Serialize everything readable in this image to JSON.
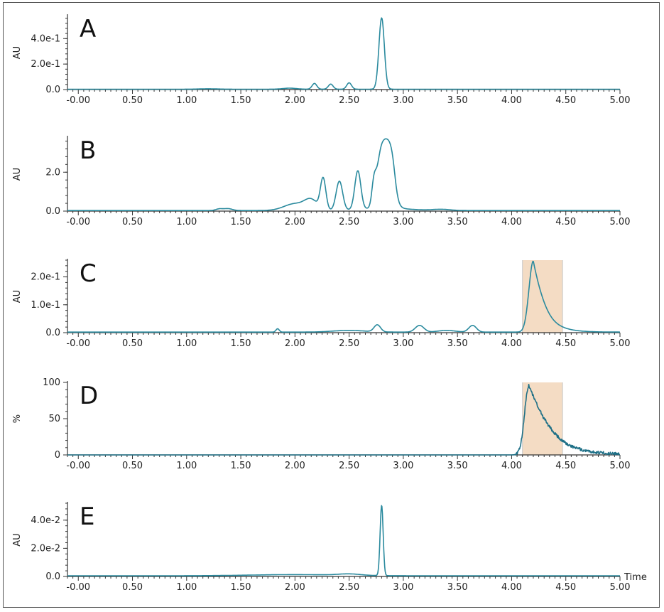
{
  "chart_data": [
    {
      "type": "line",
      "panel_label": "A",
      "ylabel": "AU",
      "xlabel": "",
      "xlim": [
        -0.1,
        5.0
      ],
      "ylim": [
        0,
        0.58
      ],
      "x_ticks": [
        "-0.00",
        "0.50",
        "1.00",
        "1.50",
        "2.00",
        "2.50",
        "3.00",
        "3.50",
        "4.00",
        "4.50",
        "5.00"
      ],
      "y_ticks": [
        {
          "value": 0,
          "label": "0.0"
        },
        {
          "value": 0.2,
          "label": "2.0e-1"
        },
        {
          "value": 0.4,
          "label": "4.0e-1"
        }
      ],
      "color": "#2a8a9e",
      "baseline": 0.003,
      "peaks": [
        {
          "x": 1.2,
          "height": 0.003,
          "width": 0.08
        },
        {
          "x": 1.95,
          "height": 0.008,
          "width": 0.06
        },
        {
          "x": 2.18,
          "height": 0.045,
          "width": 0.022
        },
        {
          "x": 2.33,
          "height": 0.04,
          "width": 0.022
        },
        {
          "x": 2.5,
          "height": 0.05,
          "width": 0.022
        },
        {
          "x": 2.8,
          "height": 0.56,
          "width": 0.025
        }
      ],
      "highlight": null
    },
    {
      "type": "line",
      "panel_label": "B",
      "ylabel": "AU",
      "xlabel": "",
      "xlim": [
        -0.1,
        5.0
      ],
      "ylim": [
        0,
        3.8
      ],
      "x_ticks": [
        "-0.00",
        "0.50",
        "1.00",
        "1.50",
        "2.00",
        "2.50",
        "3.00",
        "3.50",
        "4.00",
        "4.50",
        "5.00"
      ],
      "y_ticks": [
        {
          "value": 0,
          "label": "0.0"
        },
        {
          "value": 2.0,
          "label": "2.0"
        }
      ],
      "color": "#2a8a9e",
      "baseline": 0.03,
      "peaks": [
        {
          "x": 1.3,
          "height": 0.08,
          "width": 0.03
        },
        {
          "x": 1.38,
          "height": 0.1,
          "width": 0.04
        },
        {
          "x": 2.0,
          "height": 0.35,
          "width": 0.1
        },
        {
          "x": 2.15,
          "height": 0.5,
          "width": 0.06
        },
        {
          "x": 2.26,
          "height": 1.6,
          "width": 0.025
        },
        {
          "x": 2.41,
          "height": 1.5,
          "width": 0.03
        },
        {
          "x": 2.58,
          "height": 2.0,
          "width": 0.028
        },
        {
          "x": 2.73,
          "height": 1.2,
          "width": 0.02
        },
        {
          "x": 2.85,
          "height": 0.12,
          "width": 0.2
        },
        {
          "x": 3.35,
          "height": 0.06,
          "width": 0.08
        }
      ],
      "plateau": {
        "x0": 2.76,
        "x1": 2.92,
        "height": 3.65,
        "edge": 0.018
      },
      "highlight": null
    },
    {
      "type": "line",
      "panel_label": "C",
      "ylabel": "AU",
      "xlabel": "",
      "xlim": [
        -0.1,
        5.0
      ],
      "ylim": [
        0,
        0.26
      ],
      "x_ticks": [
        "-0.00",
        "0.50",
        "1.00",
        "1.50",
        "2.00",
        "2.50",
        "3.00",
        "3.50",
        "4.00",
        "4.50",
        "5.00"
      ],
      "y_ticks": [
        {
          "value": 0,
          "label": "0.0"
        },
        {
          "value": 0.1,
          "label": "1.0e-1"
        },
        {
          "value": 0.2,
          "label": "2.0e-1"
        }
      ],
      "color": "#2a8a9e",
      "baseline": 0.002,
      "peaks": [
        {
          "x": 1.84,
          "height": 0.012,
          "width": 0.015
        },
        {
          "x": 2.5,
          "height": 0.006,
          "width": 0.15
        },
        {
          "x": 2.76,
          "height": 0.025,
          "width": 0.03
        },
        {
          "x": 3.15,
          "height": 0.024,
          "width": 0.04
        },
        {
          "x": 3.4,
          "height": 0.006,
          "width": 0.08
        },
        {
          "x": 3.64,
          "height": 0.024,
          "width": 0.035
        }
      ],
      "tailing_peak": {
        "x": 4.2,
        "height": 0.255,
        "rise": 0.04,
        "decay": 0.11
      },
      "highlight": {
        "x0": 4.1,
        "x1": 4.47,
        "color": "#f4dcc4"
      }
    },
    {
      "type": "line",
      "panel_label": "D",
      "ylabel": "%",
      "xlabel": "",
      "xlim": [
        -0.1,
        5.0
      ],
      "ylim": [
        0,
        100
      ],
      "x_ticks": [
        "-0.00",
        "0.50",
        "1.00",
        "1.50",
        "2.00",
        "2.50",
        "3.00",
        "3.50",
        "4.00",
        "4.50",
        "5.00"
      ],
      "y_ticks": [
        {
          "value": 0,
          "label": "0"
        },
        {
          "value": 50,
          "label": "50"
        },
        {
          "value": 100,
          "label": "100"
        }
      ],
      "color": "#1d6f86",
      "baseline": 0.0,
      "peaks": [],
      "tailing_peak": {
        "x": 4.16,
        "height": 96,
        "rise": 0.04,
        "decay": 0.2
      },
      "noise": 4,
      "highlight": {
        "x0": 4.1,
        "x1": 4.47,
        "color": "#f4dcc4"
      }
    },
    {
      "type": "line",
      "panel_label": "E",
      "ylabel": "AU",
      "xlabel": "Time",
      "xlim": [
        -0.1,
        5.0
      ],
      "ylim": [
        0,
        0.052
      ],
      "x_ticks": [
        "-0.00",
        "0.50",
        "1.00",
        "1.50",
        "2.00",
        "2.50",
        "3.00",
        "3.50",
        "4.00",
        "4.50",
        "5.00"
      ],
      "y_ticks": [
        {
          "value": 0,
          "label": "0.0"
        },
        {
          "value": 0.02,
          "label": "2.0e-2"
        },
        {
          "value": 0.04,
          "label": "4.0e-2"
        }
      ],
      "color": "#2a8a9e",
      "baseline": 0.0005,
      "peaks": [
        {
          "x": 2.0,
          "height": 0.0008,
          "width": 0.4
        },
        {
          "x": 2.5,
          "height": 0.001,
          "width": 0.1
        },
        {
          "x": 2.8,
          "height": 0.05,
          "width": 0.014
        }
      ],
      "highlight": null
    }
  ]
}
